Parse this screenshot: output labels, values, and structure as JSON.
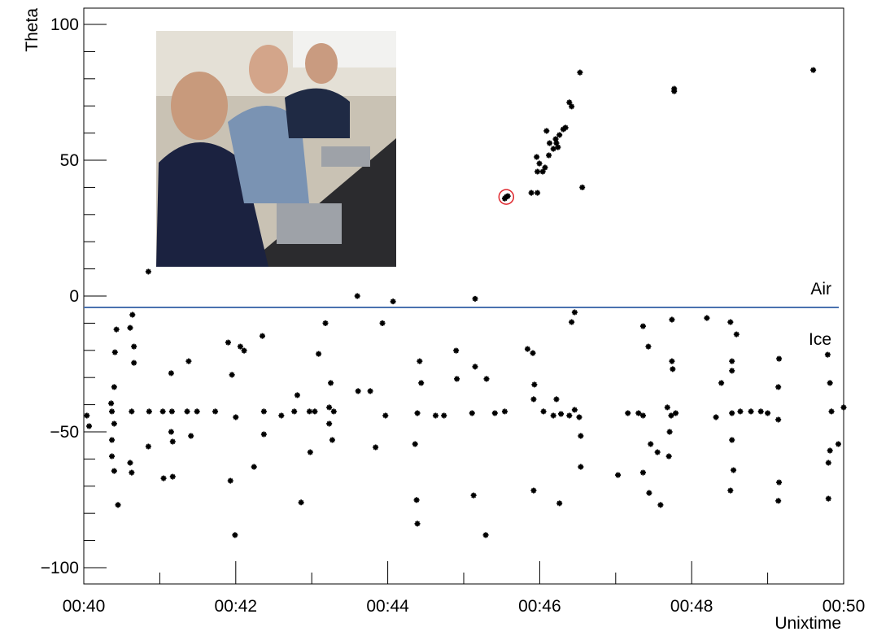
{
  "chart_data": {
    "type": "scatter",
    "x_label": "Unixtime",
    "y_label": "Theta",
    "xlim": [
      40,
      50
    ],
    "ylim": [
      -106,
      106
    ],
    "xticks": [
      {
        "value": 40,
        "label": "00:40"
      },
      {
        "value": 42,
        "label": "00:42"
      },
      {
        "value": 44,
        "label": "00:44"
      },
      {
        "value": 46,
        "label": "00:46"
      },
      {
        "value": 48,
        "label": "00:48"
      },
      {
        "value": 50,
        "label": "00:50"
      }
    ],
    "xminorticks": [
      41,
      43,
      45,
      47,
      49
    ],
    "yticks": [
      {
        "value": -100,
        "label": "−100"
      },
      {
        "value": -50,
        "label": "−50"
      },
      0,
      50,
      100
    ],
    "yminorticks": [
      -90,
      -80,
      -70,
      -60,
      -40,
      -30,
      -20,
      -10,
      10,
      20,
      30,
      40,
      60,
      70,
      80,
      90
    ],
    "boundary": {
      "value": -4.2,
      "color": "#4a72b0",
      "upper_label": "Air",
      "lower_label": "Ice"
    },
    "highlight": {
      "x": 45.56,
      "y": 36.5,
      "color": "#e0282e"
    },
    "series": [
      {
        "color": "#000000",
        "x": [
          40.85,
          43.6,
          44.07,
          45.15,
          43.93,
          43.18,
          45.56,
          45.58,
          45.54,
          45.89,
          45.97,
          46.56,
          45.97,
          45.996,
          45.96,
          46.04,
          46.07,
          46.12,
          46.18,
          46.22,
          46.26,
          46.31,
          46.34,
          46.09,
          46.13,
          46.21,
          46.24,
          46.39,
          46.42,
          46.53,
          47.77,
          47.77,
          49.6,
          40.04,
          40.07,
          40.36,
          40.4,
          40.37,
          40.4,
          40.37,
          40.37,
          40.4,
          40.45,
          40.41,
          40.43,
          40.61,
          40.64,
          40.66,
          40.66,
          40.63,
          40.61,
          40.63,
          40.86,
          40.85,
          41.04,
          41.05,
          41.15,
          41.16,
          41.15,
          41.17,
          41.17,
          41.38,
          41.36,
          41.41,
          41.49,
          41.73,
          41.9,
          41.93,
          41.95,
          41.99,
          42.0,
          42.06,
          42.11,
          42.24,
          42.35,
          42.37,
          42.37,
          42.6,
          42.77,
          42.81,
          42.86,
          42.97,
          42.98,
          43.04,
          43.09,
          43.23,
          43.23,
          43.25,
          43.27,
          43.29,
          43.61,
          43.77,
          43.84,
          43.97,
          44.36,
          44.38,
          44.39,
          44.39,
          44.42,
          44.44,
          44.63,
          44.74,
          44.9,
          44.91,
          45.11,
          45.13,
          45.15,
          45.29,
          45.3,
          45.41,
          45.54,
          45.84,
          45.91,
          45.93,
          45.92,
          45.92,
          46.05,
          46.18,
          46.22,
          46.28,
          46.39,
          46.46,
          46.52,
          46.54,
          46.26,
          46.54,
          46.46,
          46.42,
          47.03,
          47.16,
          47.3,
          47.36,
          47.36,
          47.36,
          47.43,
          47.46,
          47.44,
          47.55,
          47.59,
          47.68,
          47.73,
          47.74,
          47.74,
          47.75,
          47.71,
          47.7,
          47.79,
          48.2,
          48.32,
          48.39,
          48.51,
          48.53,
          48.53,
          48.53,
          48.53,
          48.55,
          48.51,
          48.59,
          48.64,
          48.78,
          48.91,
          49.0,
          49.15,
          49.14,
          49.14,
          49.15,
          49.14,
          49.79,
          49.82,
          49.84,
          49.82,
          49.8,
          49.8,
          49.93,
          50.0
        ],
        "values": [
          9.0,
          0,
          -2,
          -1,
          -10,
          -10,
          36.5,
          36.8,
          35.9,
          38,
          38,
          40,
          45.8,
          48.8,
          51.2,
          45.8,
          47.3,
          51.8,
          54.2,
          56.3,
          59.3,
          61.4,
          62,
          60.8,
          56.3,
          57.8,
          54.8,
          71.3,
          69.8,
          82.3,
          76.3,
          75.4,
          83.2,
          -44.0,
          -47.9,
          -39.5,
          -33.5,
          -42.5,
          -47.0,
          -53.0,
          -59.0,
          -64.4,
          -76.9,
          -20.7,
          -12.3,
          -11.7,
          -6.9,
          -18.6,
          -24.6,
          -42.5,
          -61.4,
          -65.0,
          -42.5,
          -55.4,
          -42.5,
          -67.1,
          -28.4,
          -42.5,
          -50.0,
          -53.6,
          -66.5,
          -24.0,
          -42.5,
          -51.5,
          -42.5,
          -42.5,
          -17.1,
          -68.0,
          -29.0,
          -88.0,
          -44.6,
          -18.6,
          -20.1,
          -62.9,
          -14.7,
          -42.5,
          -50.9,
          -44.0,
          -42.5,
          -36.5,
          -76.0,
          -42.5,
          -57.5,
          -42.5,
          -21.3,
          -41.0,
          -47.0,
          -32.0,
          -53.0,
          -42.5,
          -35.0,
          -35.0,
          -55.7,
          -44.0,
          -54.5,
          -75.1,
          -83.8,
          -43.1,
          -24.0,
          -32.0,
          -44.0,
          -44.0,
          -20.1,
          -30.5,
          -43.1,
          -73.4,
          -26.0,
          -88.0,
          -30.5,
          -43.1,
          -42.5,
          -19.5,
          -21.0,
          -32.6,
          -38.0,
          -71.6,
          -42.5,
          -44.0,
          -38.0,
          -43.4,
          -44.0,
          -41.9,
          -44.6,
          -51.5,
          -76.3,
          -62.9,
          -6.0,
          -9.6,
          -65.9,
          -43.1,
          -43.1,
          -11.1,
          -44.0,
          -65.0,
          -18.6,
          -54.5,
          -72.5,
          -57.5,
          -76.9,
          -41.0,
          -44.0,
          -8.7,
          -24.0,
          -26.9,
          -50.0,
          -59.0,
          -43.1,
          -8.1,
          -44.6,
          -32.0,
          -9.6,
          -24.0,
          -27.5,
          -43.1,
          -53.0,
          -64.1,
          -71.6,
          -14.1,
          -42.5,
          -42.5,
          -42.5,
          -43.1,
          -23.1,
          -33.5,
          -45.5,
          -68.6,
          -75.4,
          -21.6,
          -32.0,
          -42.5,
          -56.9,
          -61.4,
          -74.6,
          -54.5,
          -41.0
        ]
      }
    ]
  }
}
